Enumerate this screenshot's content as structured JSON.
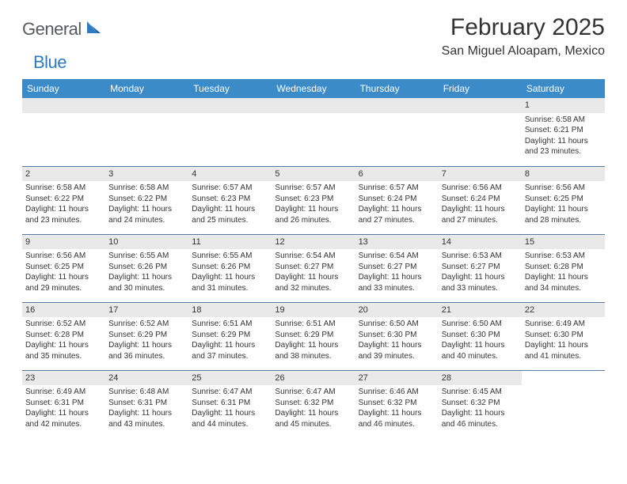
{
  "logo": {
    "text1": "General",
    "text2": "Blue"
  },
  "title": "February 2025",
  "location": "San Miguel Aloapam, Mexico",
  "colors": {
    "header_bg": "#3b8bc9",
    "header_text": "#ffffff",
    "daynum_bg": "#e9e9e9",
    "border": "#5a7a9a",
    "logo_gray": "#555a5e",
    "logo_blue": "#2f7bbf"
  },
  "day_headers": [
    "Sunday",
    "Monday",
    "Tuesday",
    "Wednesday",
    "Thursday",
    "Friday",
    "Saturday"
  ],
  "weeks": [
    [
      {
        "empty": true
      },
      {
        "empty": true
      },
      {
        "empty": true
      },
      {
        "empty": true
      },
      {
        "empty": true
      },
      {
        "empty": true
      },
      {
        "day": "1",
        "sunrise": "Sunrise: 6:58 AM",
        "sunset": "Sunset: 6:21 PM",
        "daylight": "Daylight: 11 hours and 23 minutes."
      }
    ],
    [
      {
        "day": "2",
        "sunrise": "Sunrise: 6:58 AM",
        "sunset": "Sunset: 6:22 PM",
        "daylight": "Daylight: 11 hours and 23 minutes."
      },
      {
        "day": "3",
        "sunrise": "Sunrise: 6:58 AM",
        "sunset": "Sunset: 6:22 PM",
        "daylight": "Daylight: 11 hours and 24 minutes."
      },
      {
        "day": "4",
        "sunrise": "Sunrise: 6:57 AM",
        "sunset": "Sunset: 6:23 PM",
        "daylight": "Daylight: 11 hours and 25 minutes."
      },
      {
        "day": "5",
        "sunrise": "Sunrise: 6:57 AM",
        "sunset": "Sunset: 6:23 PM",
        "daylight": "Daylight: 11 hours and 26 minutes."
      },
      {
        "day": "6",
        "sunrise": "Sunrise: 6:57 AM",
        "sunset": "Sunset: 6:24 PM",
        "daylight": "Daylight: 11 hours and 27 minutes."
      },
      {
        "day": "7",
        "sunrise": "Sunrise: 6:56 AM",
        "sunset": "Sunset: 6:24 PM",
        "daylight": "Daylight: 11 hours and 27 minutes."
      },
      {
        "day": "8",
        "sunrise": "Sunrise: 6:56 AM",
        "sunset": "Sunset: 6:25 PM",
        "daylight": "Daylight: 11 hours and 28 minutes."
      }
    ],
    [
      {
        "day": "9",
        "sunrise": "Sunrise: 6:56 AM",
        "sunset": "Sunset: 6:25 PM",
        "daylight": "Daylight: 11 hours and 29 minutes."
      },
      {
        "day": "10",
        "sunrise": "Sunrise: 6:55 AM",
        "sunset": "Sunset: 6:26 PM",
        "daylight": "Daylight: 11 hours and 30 minutes."
      },
      {
        "day": "11",
        "sunrise": "Sunrise: 6:55 AM",
        "sunset": "Sunset: 6:26 PM",
        "daylight": "Daylight: 11 hours and 31 minutes."
      },
      {
        "day": "12",
        "sunrise": "Sunrise: 6:54 AM",
        "sunset": "Sunset: 6:27 PM",
        "daylight": "Daylight: 11 hours and 32 minutes."
      },
      {
        "day": "13",
        "sunrise": "Sunrise: 6:54 AM",
        "sunset": "Sunset: 6:27 PM",
        "daylight": "Daylight: 11 hours and 33 minutes."
      },
      {
        "day": "14",
        "sunrise": "Sunrise: 6:53 AM",
        "sunset": "Sunset: 6:27 PM",
        "daylight": "Daylight: 11 hours and 33 minutes."
      },
      {
        "day": "15",
        "sunrise": "Sunrise: 6:53 AM",
        "sunset": "Sunset: 6:28 PM",
        "daylight": "Daylight: 11 hours and 34 minutes."
      }
    ],
    [
      {
        "day": "16",
        "sunrise": "Sunrise: 6:52 AM",
        "sunset": "Sunset: 6:28 PM",
        "daylight": "Daylight: 11 hours and 35 minutes."
      },
      {
        "day": "17",
        "sunrise": "Sunrise: 6:52 AM",
        "sunset": "Sunset: 6:29 PM",
        "daylight": "Daylight: 11 hours and 36 minutes."
      },
      {
        "day": "18",
        "sunrise": "Sunrise: 6:51 AM",
        "sunset": "Sunset: 6:29 PM",
        "daylight": "Daylight: 11 hours and 37 minutes."
      },
      {
        "day": "19",
        "sunrise": "Sunrise: 6:51 AM",
        "sunset": "Sunset: 6:29 PM",
        "daylight": "Daylight: 11 hours and 38 minutes."
      },
      {
        "day": "20",
        "sunrise": "Sunrise: 6:50 AM",
        "sunset": "Sunset: 6:30 PM",
        "daylight": "Daylight: 11 hours and 39 minutes."
      },
      {
        "day": "21",
        "sunrise": "Sunrise: 6:50 AM",
        "sunset": "Sunset: 6:30 PM",
        "daylight": "Daylight: 11 hours and 40 minutes."
      },
      {
        "day": "22",
        "sunrise": "Sunrise: 6:49 AM",
        "sunset": "Sunset: 6:30 PM",
        "daylight": "Daylight: 11 hours and 41 minutes."
      }
    ],
    [
      {
        "day": "23",
        "sunrise": "Sunrise: 6:49 AM",
        "sunset": "Sunset: 6:31 PM",
        "daylight": "Daylight: 11 hours and 42 minutes."
      },
      {
        "day": "24",
        "sunrise": "Sunrise: 6:48 AM",
        "sunset": "Sunset: 6:31 PM",
        "daylight": "Daylight: 11 hours and 43 minutes."
      },
      {
        "day": "25",
        "sunrise": "Sunrise: 6:47 AM",
        "sunset": "Sunset: 6:31 PM",
        "daylight": "Daylight: 11 hours and 44 minutes."
      },
      {
        "day": "26",
        "sunrise": "Sunrise: 6:47 AM",
        "sunset": "Sunset: 6:32 PM",
        "daylight": "Daylight: 11 hours and 45 minutes."
      },
      {
        "day": "27",
        "sunrise": "Sunrise: 6:46 AM",
        "sunset": "Sunset: 6:32 PM",
        "daylight": "Daylight: 11 hours and 46 minutes."
      },
      {
        "day": "28",
        "sunrise": "Sunrise: 6:45 AM",
        "sunset": "Sunset: 6:32 PM",
        "daylight": "Daylight: 11 hours and 46 minutes."
      },
      {
        "empty": true,
        "noband": true
      }
    ]
  ]
}
